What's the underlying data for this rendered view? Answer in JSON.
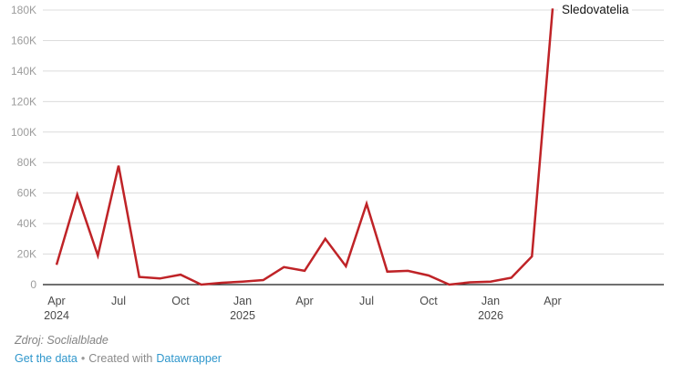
{
  "chart_data": {
    "type": "line",
    "title": "",
    "xlabel": "",
    "ylabel": "",
    "x": [
      "Apr 2024",
      "May 2024",
      "Jun 2024",
      "Jul 2024",
      "Aug 2024",
      "Sep 2024",
      "Oct 2024",
      "Nov 2024",
      "Dec 2024",
      "Jan 2025",
      "Feb 2025",
      "Mar 2025",
      "Apr 2025",
      "May 2025",
      "Jun 2025",
      "Jul 2025",
      "Aug 2025",
      "Sep 2025",
      "Oct 2025",
      "Nov 2025",
      "Dec 2025",
      "Jan 2026",
      "Feb 2026",
      "Mar 2026",
      "Apr 2026"
    ],
    "series": [
      {
        "name": "Sledovatelia",
        "values": [
          13000,
          59000,
          19000,
          78000,
          5000,
          4000,
          6500,
          0,
          1200,
          2000,
          3000,
          11500,
          9000,
          30000,
          12000,
          53000,
          8500,
          9000,
          6000,
          0,
          1500,
          2000,
          4500,
          18500,
          181000
        ]
      }
    ],
    "ylim": [
      0,
      180000
    ],
    "grid": true,
    "legend_position": "end-of-line-label",
    "y_ticks": [
      {
        "value": 0,
        "label": "0"
      },
      {
        "value": 20000,
        "label": "20K"
      },
      {
        "value": 40000,
        "label": "40K"
      },
      {
        "value": 60000,
        "label": "60K"
      },
      {
        "value": 80000,
        "label": "80K"
      },
      {
        "value": 100000,
        "label": "100K"
      },
      {
        "value": 120000,
        "label": "120K"
      },
      {
        "value": 140000,
        "label": "140K"
      },
      {
        "value": 160000,
        "label": "160K"
      },
      {
        "value": 180000,
        "label": "180K"
      }
    ],
    "x_ticks": [
      {
        "month": "Apr",
        "year": "2024",
        "index": 0
      },
      {
        "month": "Jul",
        "year": "",
        "index": 3
      },
      {
        "month": "Oct",
        "year": "",
        "index": 6
      },
      {
        "month": "Jan",
        "year": "2025",
        "index": 9
      },
      {
        "month": "Apr",
        "year": "",
        "index": 12
      },
      {
        "month": "Jul",
        "year": "",
        "index": 15
      },
      {
        "month": "Oct",
        "year": "",
        "index": 18
      },
      {
        "month": "Jan",
        "year": "2026",
        "index": 21
      },
      {
        "month": "Apr",
        "year": "",
        "index": 24
      }
    ]
  },
  "colors": {
    "line": "#bf2327",
    "grid": "#dcdcdc",
    "axis": "#1a1a1a",
    "y_tick_label": "#9c9c9c",
    "x_tick_label": "#4a4a4a",
    "annotation": "#151515",
    "source_text": "#828282",
    "link": "#2f97cc"
  },
  "footer": {
    "source_text": "Zdroj: Soclialblade",
    "get_data_label": "Get the data",
    "separator": "•",
    "created_with": "Created with",
    "datawrapper_label": "Datawrapper"
  }
}
